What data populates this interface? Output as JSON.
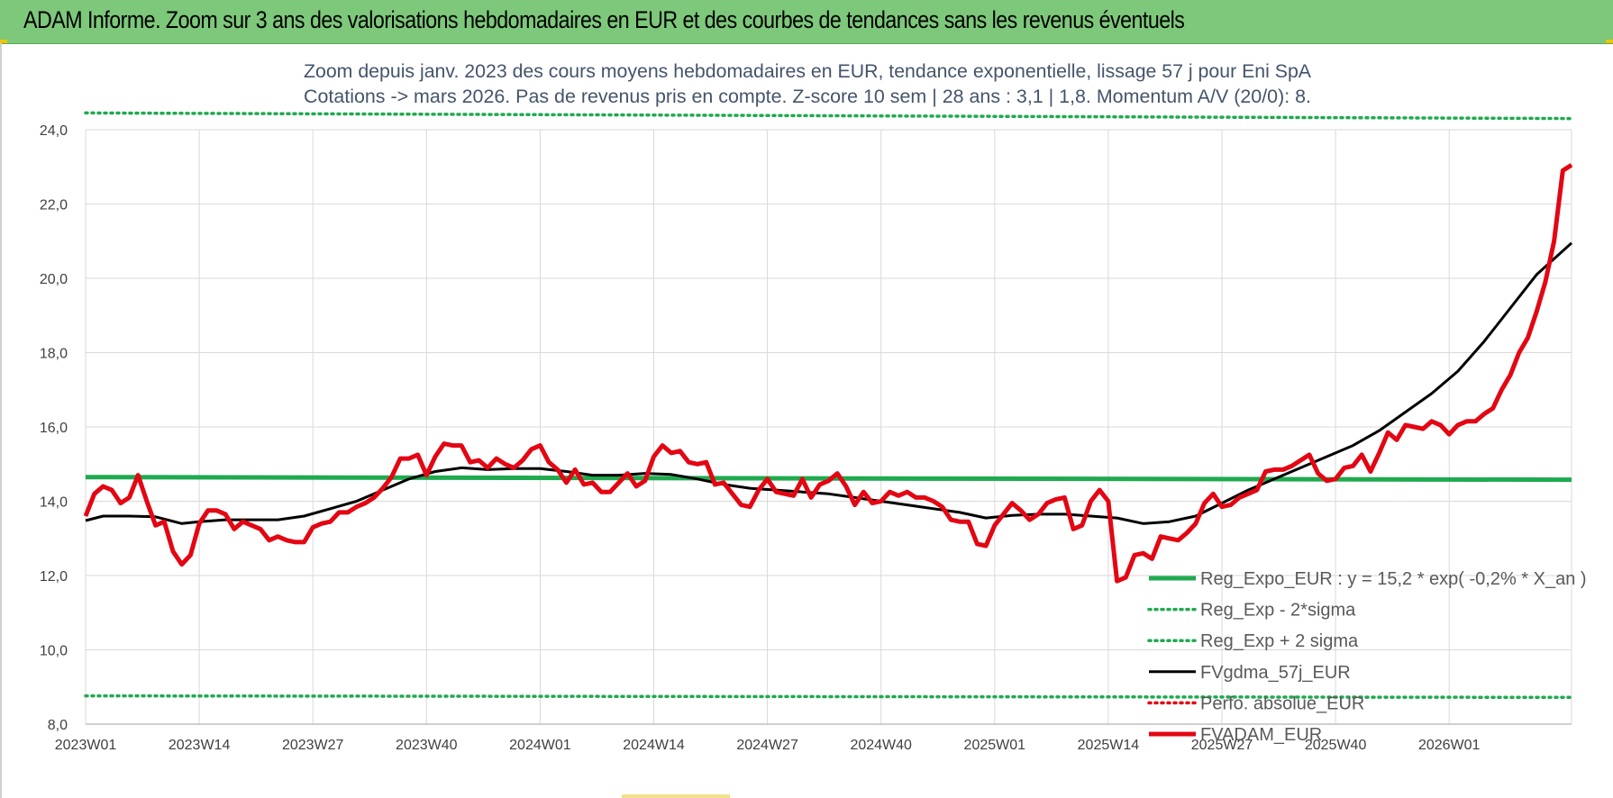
{
  "banner": {
    "title": "ADAM Informe. Zoom sur 3 ans des valorisations hebdomadaires en EUR et des courbes de tendances sans les revenus éventuels"
  },
  "colors": {
    "banner_bg": "#7dc87a",
    "trend_green": "#1faa4f",
    "black_line": "#000000",
    "red_line": "#e30613",
    "grid": "#d9d9d9",
    "title_text": "#44546a"
  },
  "chart_data": {
    "type": "line",
    "title": "Zoom depuis janv. 2023 des cours moyens hebdomadaires en EUR, tendance exponentielle, lissage 57 j pour Eni SpA",
    "subtitle": "Cotations -> mars 2026. Pas de revenus pris en compte. Z-score 10 sem | 28 ans : 3,1 | 1,8. Momentum A/V (20/0): 8.",
    "ylim": [
      8,
      24
    ],
    "yticks": [
      "8,0",
      "10,0",
      "12,0",
      "14,0",
      "16,0",
      "18,0",
      "20,0",
      "22,0",
      "24,0"
    ],
    "ytick_values": [
      8,
      10,
      12,
      14,
      16,
      18,
      20,
      22,
      24
    ],
    "xticks": [
      "2023W01",
      "2023W14",
      "2023W27",
      "2023W40",
      "2024W01",
      "2024W14",
      "2024W27",
      "2024W40",
      "2025W01",
      "2025W14",
      "2025W27",
      "2025W40",
      "2026W01"
    ],
    "xtick_index": [
      0,
      13,
      26,
      39,
      52,
      65,
      78,
      91,
      104,
      117,
      130,
      143,
      156
    ],
    "n_weeks": 171,
    "grid": true,
    "legend_position": "lower-right",
    "series": [
      {
        "name": "Reg_Expo_EUR : y = 15,2 * exp( -0,2% *  X_an )",
        "style": "solid-thick",
        "color": "#1faa4f",
        "x": [
          0,
          170
        ],
        "values": [
          14.65,
          14.58
        ]
      },
      {
        "name": "Reg_Exp - 2*sigma",
        "style": "dotted",
        "color": "#1faa4f",
        "x": [
          0,
          170
        ],
        "values": [
          8.76,
          8.72
        ]
      },
      {
        "name": "Reg_Exp + 2 sigma",
        "style": "dotted",
        "color": "#1faa4f",
        "x": [
          0,
          170
        ],
        "values": [
          24.45,
          24.3
        ]
      },
      {
        "name": "FVgdma_57j_EUR",
        "style": "solid",
        "color": "#000000",
        "x": [
          0,
          2,
          5,
          8,
          11,
          13,
          16,
          19,
          22,
          25,
          28,
          31,
          34,
          37,
          40,
          43,
          46,
          49,
          52,
          55,
          58,
          61,
          64,
          67,
          70,
          73,
          76,
          79,
          82,
          85,
          88,
          91,
          94,
          97,
          100,
          103,
          106,
          109,
          112,
          115,
          118,
          121,
          124,
          127,
          130,
          133,
          136,
          139,
          142,
          145,
          148,
          151,
          154,
          157,
          160,
          163,
          166,
          170
        ],
        "values": [
          13.48,
          13.6,
          13.6,
          13.58,
          13.4,
          13.45,
          13.5,
          13.5,
          13.5,
          13.6,
          13.8,
          14.0,
          14.3,
          14.6,
          14.8,
          14.9,
          14.85,
          14.88,
          14.88,
          14.8,
          14.7,
          14.7,
          14.75,
          14.72,
          14.6,
          14.45,
          14.35,
          14.3,
          14.25,
          14.2,
          14.1,
          14.0,
          13.9,
          13.8,
          13.7,
          13.55,
          13.62,
          13.65,
          13.65,
          13.6,
          13.55,
          13.4,
          13.45,
          13.6,
          13.95,
          14.3,
          14.6,
          14.9,
          15.2,
          15.5,
          15.9,
          16.4,
          16.9,
          17.5,
          18.3,
          19.2,
          20.1,
          20.95
        ]
      },
      {
        "name": "Perfo. absolue_EUR",
        "style": "dotted",
        "color": "#e30613",
        "x": [],
        "values": []
      },
      {
        "name": "FVADAM_EUR",
        "style": "solid-thick",
        "color": "#e30613",
        "x": [
          0,
          1,
          2,
          3,
          4,
          5,
          6,
          7,
          8,
          9,
          10,
          11,
          12,
          13,
          14,
          15,
          16,
          17,
          18,
          19,
          20,
          21,
          22,
          23,
          24,
          25,
          26,
          27,
          28,
          29,
          30,
          31,
          32,
          33,
          34,
          35,
          36,
          37,
          38,
          39,
          40,
          41,
          42,
          43,
          44,
          45,
          46,
          47,
          48,
          49,
          50,
          51,
          52,
          53,
          54,
          55,
          56,
          57,
          58,
          59,
          60,
          61,
          62,
          63,
          64,
          65,
          66,
          67,
          68,
          69,
          70,
          71,
          72,
          73,
          74,
          75,
          76,
          77,
          78,
          79,
          80,
          81,
          82,
          83,
          84,
          85,
          86,
          87,
          88,
          89,
          90,
          91,
          92,
          93,
          94,
          95,
          96,
          97,
          98,
          99,
          100,
          101,
          102,
          103,
          104,
          105,
          106,
          107,
          108,
          109,
          110,
          111,
          112,
          113,
          114,
          115,
          116,
          117,
          118,
          119,
          120,
          121,
          122,
          123,
          124,
          125,
          126,
          127,
          128,
          129,
          130,
          131,
          132,
          133,
          134,
          135,
          136,
          137,
          138,
          139,
          140,
          141,
          142,
          143,
          144,
          145,
          146,
          147,
          148,
          149,
          150,
          151,
          152,
          153,
          154,
          155,
          156,
          157,
          158,
          159,
          160,
          161,
          162,
          163,
          164,
          165,
          166,
          167,
          168,
          169,
          170
        ],
        "values": [
          13.6,
          14.2,
          14.4,
          14.3,
          13.95,
          14.1,
          14.7,
          14.0,
          13.35,
          13.45,
          12.65,
          12.3,
          12.55,
          13.4,
          13.75,
          13.75,
          13.65,
          13.25,
          13.45,
          13.35,
          13.25,
          12.95,
          13.05,
          12.95,
          12.9,
          12.9,
          13.3,
          13.4,
          13.45,
          13.7,
          13.7,
          13.85,
          13.95,
          14.1,
          14.35,
          14.65,
          15.15,
          15.15,
          15.25,
          14.7,
          15.2,
          15.55,
          15.5,
          15.5,
          15.05,
          15.1,
          14.9,
          15.15,
          15.0,
          14.9,
          15.1,
          15.4,
          15.5,
          15.05,
          14.85,
          14.5,
          14.85,
          14.45,
          14.5,
          14.25,
          14.25,
          14.5,
          14.75,
          14.4,
          14.55,
          15.2,
          15.5,
          15.3,
          15.35,
          15.05,
          15.0,
          15.05,
          14.45,
          14.5,
          14.2,
          13.9,
          13.85,
          14.3,
          14.6,
          14.25,
          14.2,
          14.15,
          14.6,
          14.1,
          14.45,
          14.55,
          14.75,
          14.4,
          13.9,
          14.25,
          13.95,
          14.0,
          14.25,
          14.15,
          14.25,
          14.1,
          14.1,
          14.0,
          13.85,
          13.5,
          13.45,
          13.45,
          12.85,
          12.8,
          13.35,
          13.65,
          13.95,
          13.75,
          13.5,
          13.65,
          13.95,
          14.05,
          14.1,
          13.25,
          13.35,
          14.0,
          14.3,
          14.0,
          11.85,
          11.95,
          12.55,
          12.6,
          12.45,
          13.05,
          13.0,
          12.95,
          13.15,
          13.4,
          13.95,
          14.2,
          13.85,
          13.9,
          14.1,
          14.2,
          14.3,
          14.8,
          14.85,
          14.85,
          14.95,
          15.1,
          15.25,
          14.75,
          14.55,
          14.6,
          14.9,
          14.95,
          15.25,
          14.8,
          15.3,
          15.85,
          15.65,
          16.05,
          16.0,
          15.95,
          16.15,
          16.05,
          15.8,
          16.05,
          16.15,
          16.15,
          16.35,
          16.5,
          17.0,
          17.4,
          18.0,
          18.4,
          19.1,
          19.9,
          21.0,
          22.9,
          23.05
        ]
      }
    ]
  }
}
